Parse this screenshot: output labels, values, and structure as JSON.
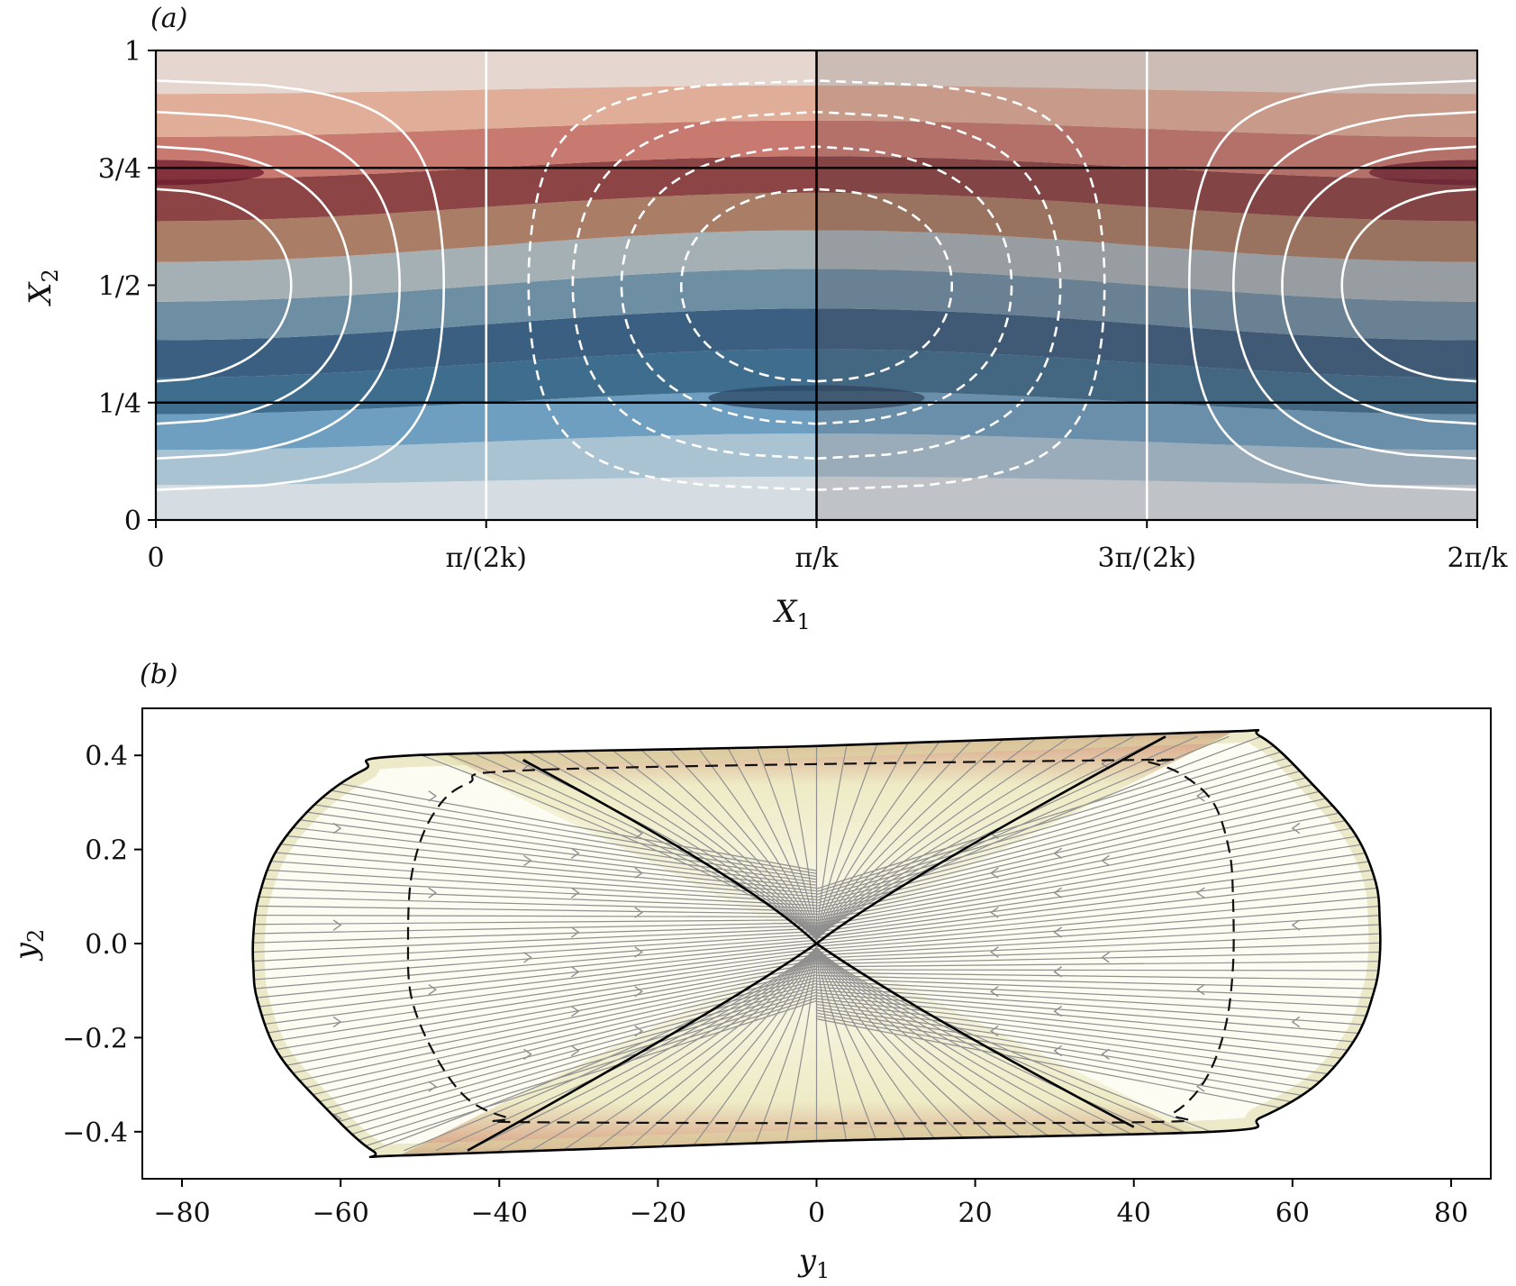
{
  "figure": {
    "panels": [
      "(a)",
      "(b)"
    ]
  },
  "chart_data": [
    {
      "panel": "(a)",
      "type": "contour",
      "title": "",
      "xlabel_main": "X",
      "xlabel_sub": "1",
      "ylabel_main": "X",
      "ylabel_sub": "2",
      "xlim": [
        0,
        6.283185307
      ],
      "ylim": [
        0,
        1
      ],
      "x_tick_labels": [
        "0",
        "π/(2k)",
        "π/k",
        "3π/(2k)",
        "2π/k"
      ],
      "x_tick_values": [
        0,
        1.570796327,
        3.141592654,
        4.71238898,
        6.283185307
      ],
      "y_tick_labels": [
        "0",
        "1/4",
        "1/2",
        "3/4",
        "1"
      ],
      "y_tick_values": [
        0,
        0.25,
        0.5,
        0.75,
        1
      ],
      "filled_levels": 12,
      "colormap": [
        "#d6dde2",
        "#a9c3d3",
        "#6e9fc0",
        "#3f6d8e",
        "#3b5f80",
        "#6d8ea3",
        "#a5b0b5",
        "#a97d66",
        "#8c4444",
        "#c87a71",
        "#e0ad98",
        "#e5d6cf"
      ],
      "reference_lines": {
        "horizontal": [
          0.25,
          0.75
        ],
        "vertical_black": [
          3.141592654
        ],
        "vertical_white": [
          1.570796327,
          4.71238898
        ]
      },
      "streamfunction_contours": {
        "positive_style": "solid",
        "negative_style": "dashed",
        "levels": [
          0.2,
          0.4,
          0.6,
          0.8
        ]
      },
      "shaded_region_x": [
        3.141592654,
        6.283185307
      ]
    },
    {
      "panel": "(b)",
      "type": "streamplot",
      "title": "",
      "xlabel_main": "y",
      "xlabel_sub": "1",
      "ylabel_main": "y",
      "ylabel_sub": "2",
      "xlim": [
        -85,
        85
      ],
      "ylim": [
        -0.5,
        0.5
      ],
      "x_ticks": [
        -80,
        -60,
        -40,
        -20,
        0,
        20,
        40,
        60,
        80
      ],
      "x_tick_labels": [
        "−80",
        "−60",
        "−40",
        "−20",
        "0",
        "20",
        "40",
        "60",
        "80"
      ],
      "y_ticks": [
        -0.4,
        -0.2,
        0.0,
        0.2,
        0.4
      ],
      "y_tick_labels": [
        "−0.4",
        "−0.2",
        "0.0",
        "0.2",
        "0.4"
      ],
      "boundary_outline": [
        [
          -71,
          -0.05
        ],
        [
          -71,
          0.02
        ],
        [
          -70.3,
          0.1
        ],
        [
          -68,
          0.2
        ],
        [
          -63,
          0.3
        ],
        [
          -57,
          0.37
        ],
        [
          -51,
          0.4
        ],
        [
          0,
          0.42
        ],
        [
          50,
          0.45
        ],
        [
          56,
          0.44
        ],
        [
          63,
          0.33
        ],
        [
          68,
          0.23
        ],
        [
          70.5,
          0.13
        ],
        [
          71,
          0.05
        ],
        [
          71,
          -0.03
        ],
        [
          70.3,
          -0.1
        ],
        [
          68,
          -0.2
        ],
        [
          63,
          -0.3
        ],
        [
          56,
          -0.37
        ],
        [
          50,
          -0.4
        ],
        [
          0,
          -0.42
        ],
        [
          -51,
          -0.45
        ],
        [
          -56,
          -0.44
        ],
        [
          -63,
          -0.33
        ],
        [
          -68,
          -0.23
        ],
        [
          -70.5,
          -0.12
        ]
      ],
      "dashed_outline": [
        [
          -34,
          0.37
        ],
        [
          39,
          0.39
        ],
        [
          42,
          0.385
        ],
        [
          46,
          0.36
        ],
        [
          50,
          0.3
        ],
        [
          52,
          0.2
        ],
        [
          52.5,
          0.1
        ],
        [
          52.5,
          -0.05
        ],
        [
          51.5,
          -0.18
        ],
        [
          49,
          -0.29
        ],
        [
          45,
          -0.36
        ],
        [
          40,
          -0.38
        ],
        [
          -34,
          -0.38
        ],
        [
          -39,
          -0.37
        ],
        [
          -44,
          -0.33
        ],
        [
          -48,
          -0.24
        ],
        [
          -51,
          -0.12
        ],
        [
          -51.5,
          0.0
        ],
        [
          -51,
          0.15
        ],
        [
          -48.5,
          0.27
        ],
        [
          -44,
          0.34
        ]
      ],
      "colormap": [
        "#fefcf5",
        "#f1efcc",
        "#cc9070",
        "#6a2140"
      ]
    }
  ]
}
